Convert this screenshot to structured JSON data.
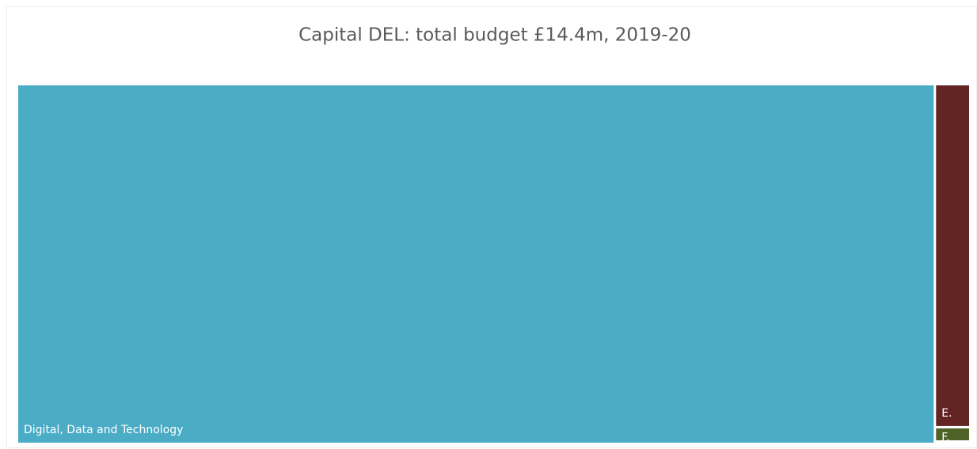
{
  "chart_data": {
    "type": "treemap",
    "title": "Capital DEL: total budget £14.4m, 2019-20",
    "categories": [
      "Digital, Data and Technology",
      "E.",
      "F."
    ],
    "values": [
      13.9,
      0.48,
      0.02
    ],
    "colors": [
      "#4bacc6",
      "#632523",
      "#4f6228"
    ]
  }
}
